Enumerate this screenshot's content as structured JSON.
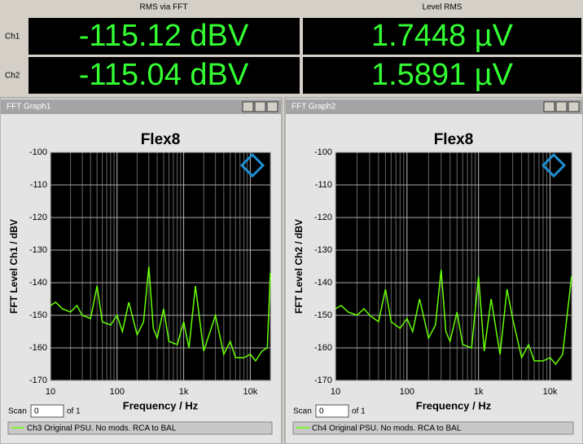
{
  "readouts": {
    "headers": [
      "RMS via FFT",
      "Level RMS"
    ],
    "rows": [
      {
        "channel": "Ch1",
        "values": [
          "-115.12 dBV",
          "1.7448 µV"
        ]
      },
      {
        "channel": "Ch2",
        "values": [
          "-115.04 dBV",
          "1.5891 µV"
        ]
      }
    ]
  },
  "windows": [
    {
      "title": "FFT Graph1",
      "scan_label": "Scan",
      "scan_value": "0",
      "scan_of": "of 1"
    },
    {
      "title": "FFT Graph2",
      "scan_label": "Scan",
      "scan_value": "0",
      "scan_of": "of 1"
    }
  ],
  "chart_data": [
    {
      "type": "line",
      "title": "Flex8",
      "x_label": "Frequency / Hz",
      "y_label": "FFT Level Ch1 / dBV",
      "log_x": true,
      "grid": true,
      "xlim": [
        10,
        20000
      ],
      "ylim": [
        -170,
        -100
      ],
      "xticks": [
        10,
        100,
        {
          "value": 1000,
          "label": "1k"
        },
        {
          "value": 10000,
          "label": "10k"
        }
      ],
      "yticks": [
        -100,
        -110,
        -120,
        -130,
        -140,
        -150,
        -160,
        -170
      ],
      "x": [
        10,
        12,
        15,
        20,
        25,
        30,
        40,
        50,
        60,
        80,
        100,
        120,
        150,
        200,
        250,
        300,
        350,
        400,
        500,
        600,
        800,
        1000,
        1200,
        1500,
        2000,
        3000,
        4000,
        5000,
        6000,
        8000,
        10000,
        12000,
        15000,
        18000,
        20000
      ],
      "series": [
        {
          "name": "Ch3 Original PSU. No mods. RCA to BAL",
          "color": "#66ff00",
          "values": [
            -147,
            -146,
            -148,
            -149,
            -147,
            -150,
            -151,
            -141,
            -152,
            -153,
            -150,
            -155,
            -146,
            -156,
            -152,
            -135,
            -154,
            -157,
            -148,
            -158,
            -159,
            -152,
            -160,
            -141,
            -161,
            -150,
            -162,
            -158,
            -163,
            -163,
            -162,
            -164,
            -161,
            -160,
            -137
          ]
        }
      ]
    },
    {
      "type": "line",
      "title": "Flex8",
      "x_label": "Frequency / Hz",
      "y_label": "FFT Level Ch2 / dBV",
      "log_x": true,
      "grid": true,
      "xlim": [
        10,
        20000
      ],
      "ylim": [
        -170,
        -100
      ],
      "xticks": [
        10,
        100,
        {
          "value": 1000,
          "label": "1k"
        },
        {
          "value": 10000,
          "label": "10k"
        }
      ],
      "yticks": [
        -100,
        -110,
        -120,
        -130,
        -140,
        -150,
        -160,
        -170
      ],
      "x": [
        10,
        12,
        15,
        20,
        25,
        30,
        40,
        50,
        60,
        80,
        100,
        120,
        150,
        200,
        250,
        300,
        350,
        400,
        500,
        600,
        800,
        1000,
        1200,
        1500,
        2000,
        2500,
        3000,
        4000,
        5000,
        6000,
        8000,
        10000,
        12000,
        15000,
        20000
      ],
      "series": [
        {
          "name": "Ch4 Original PSU. No mods. RCA to BAL",
          "color": "#66ff00",
          "values": [
            -148,
            -147,
            -149,
            -150,
            -148,
            -150,
            -152,
            -142,
            -152,
            -154,
            -151,
            -155,
            -145,
            -157,
            -153,
            -136,
            -155,
            -158,
            -149,
            -159,
            -160,
            -138,
            -161,
            -145,
            -162,
            -142,
            -151,
            -163,
            -159,
            -164,
            -164,
            -163,
            -165,
            -162,
            -138
          ]
        }
      ]
    }
  ]
}
